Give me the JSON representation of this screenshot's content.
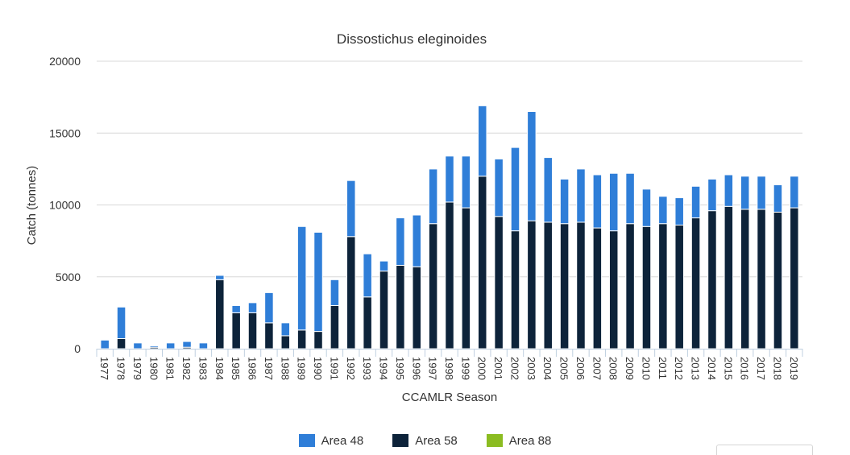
{
  "chart_data": {
    "type": "bar",
    "stacked": true,
    "title": "Dissostichus eleginoides",
    "xlabel": "CCAMLR Season",
    "ylabel": "Catch (tonnes)",
    "ylim": [
      0,
      20000
    ],
    "yticks": [
      0,
      5000,
      10000,
      15000,
      20000
    ],
    "ytick_labels": [
      "0",
      "5000",
      "10000",
      "15000",
      "20000"
    ],
    "grid": true,
    "legend_position": "bottom-center",
    "categories": [
      "1977",
      "1978",
      "1979",
      "1980",
      "1981",
      "1982",
      "1983",
      "1984",
      "1985",
      "1986",
      "1987",
      "1988",
      "1989",
      "1990",
      "1991",
      "1992",
      "1993",
      "1994",
      "1995",
      "1996",
      "1997",
      "1998",
      "1999",
      "2000",
      "2001",
      "2002",
      "2003",
      "2004",
      "2005",
      "2006",
      "2007",
      "2008",
      "2009",
      "2010",
      "2011",
      "2012",
      "2013",
      "2014",
      "2015",
      "2016",
      "2017",
      "2018",
      "2019"
    ],
    "series": [
      {
        "name": "Area 58",
        "color": "#0d233a",
        "values": [
          0,
          700,
          0,
          100,
          0,
          100,
          0,
          4800,
          2500,
          2500,
          1800,
          900,
          1300,
          1200,
          3000,
          7800,
          3600,
          5400,
          5800,
          5700,
          8700,
          10200,
          9800,
          12000,
          9200,
          8200,
          8900,
          8800,
          8700,
          8800,
          8400,
          8200,
          8700,
          8500,
          8700,
          8600,
          9100,
          9600,
          9900,
          9700,
          9700,
          9500,
          9800
        ]
      },
      {
        "name": "Area 48",
        "color": "#2f7ed8",
        "values": [
          600,
          2200,
          400,
          100,
          400,
          400,
          400,
          300,
          500,
          700,
          2100,
          900,
          7200,
          6900,
          1800,
          3900,
          3000,
          700,
          3300,
          3600,
          3800,
          3200,
          3600,
          4900,
          4000,
          5800,
          7600,
          4500,
          3100,
          3700,
          3700,
          4000,
          3500,
          2600,
          1900,
          1900,
          2200,
          2200,
          2200,
          2300,
          2300,
          1900,
          2200
        ]
      },
      {
        "name": "Area 88",
        "color": "#8bbc21",
        "values": [
          0,
          0,
          0,
          0,
          0,
          0,
          0,
          0,
          0,
          0,
          0,
          0,
          0,
          0,
          0,
          0,
          0,
          0,
          0,
          0,
          0,
          0,
          0,
          0,
          0,
          0,
          0,
          0,
          0,
          0,
          0,
          0,
          0,
          0,
          0,
          0,
          0,
          0,
          0,
          0,
          0,
          0,
          0
        ]
      }
    ]
  },
  "legend": {
    "items": [
      {
        "label": "Area 48",
        "color": "#2f7ed8"
      },
      {
        "label": "Area 58",
        "color": "#0d233a"
      },
      {
        "label": "Area 88",
        "color": "#8bbc21"
      }
    ]
  }
}
